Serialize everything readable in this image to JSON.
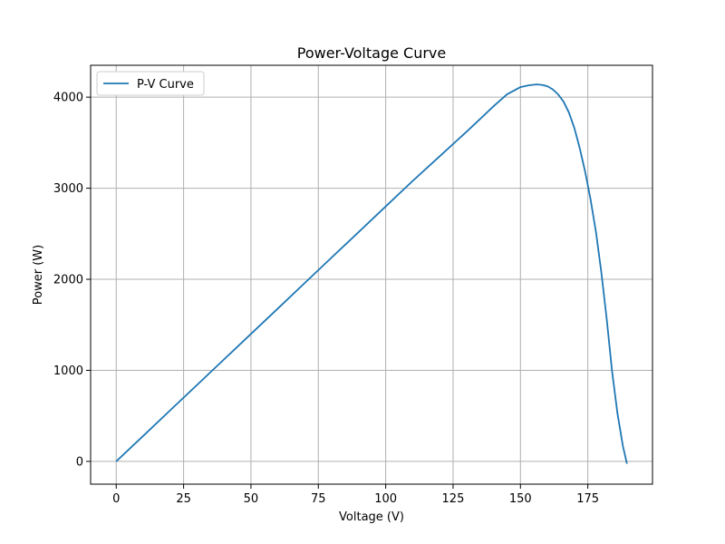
{
  "chart_data": {
    "type": "line",
    "title": "Power-Voltage Curve",
    "xlabel": "Voltage (V)",
    "ylabel": "Power (W)",
    "xlim": [
      -9.5,
      199
    ],
    "ylim": [
      -250,
      4350
    ],
    "xticks": [
      0,
      25,
      50,
      75,
      100,
      125,
      150,
      175
    ],
    "yticks": [
      0,
      1000,
      2000,
      3000,
      4000
    ],
    "grid": true,
    "legend": "top-left",
    "series": [
      {
        "name": "P-V Curve",
        "color": "#1f77b4",
        "x": [
          0,
          10,
          20,
          30,
          40,
          50,
          60,
          70,
          80,
          90,
          100,
          110,
          120,
          130,
          135,
          140,
          145,
          150,
          153,
          156,
          158,
          160,
          162,
          164,
          166,
          168,
          170,
          172,
          174,
          176,
          178,
          180,
          182,
          184,
          186,
          188,
          189.5
        ],
        "y": [
          0,
          280,
          560,
          840,
          1120,
          1400,
          1680,
          1960,
          2240,
          2520,
          2800,
          3080,
          3350,
          3620,
          3760,
          3900,
          4030,
          4110,
          4130,
          4140,
          4135,
          4120,
          4085,
          4030,
          3950,
          3830,
          3660,
          3440,
          3180,
          2880,
          2520,
          2080,
          1570,
          990,
          530,
          170,
          -25
        ]
      }
    ]
  }
}
